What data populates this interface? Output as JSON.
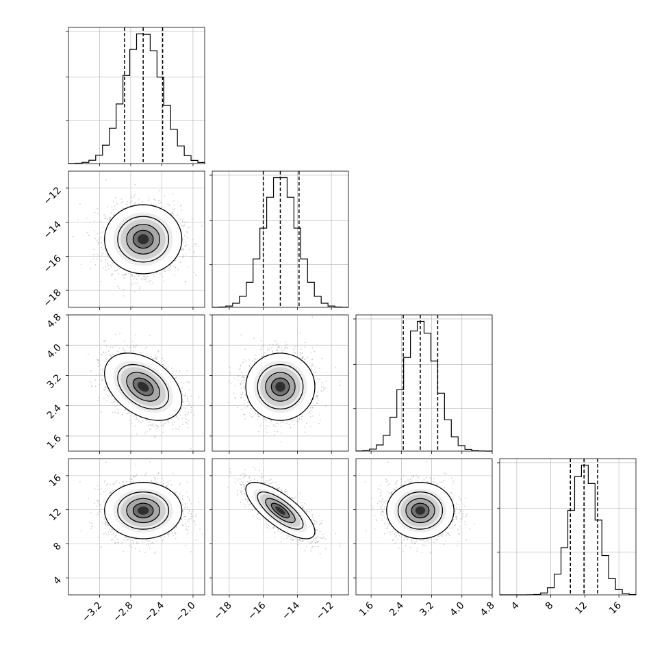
{
  "chart_data": {
    "type": "corner",
    "params": [
      {
        "name": "p0",
        "label": "",
        "range": [
          -3.6,
          -1.85
        ],
        "mean": -2.64,
        "sd": 0.24,
        "quantiles": [
          -2.88,
          -2.64,
          -2.39
        ],
        "tick_values": [
          -3.2,
          -2.8,
          -2.4,
          -2.0
        ],
        "tick_labels": [
          "−3.2",
          "−2.8",
          "−2.4",
          "−2.0"
        ]
      },
      {
        "name": "p1",
        "label": "",
        "range": [
          -19.0,
          -11.0
        ],
        "mean": -15.0,
        "sd": 0.98,
        "quantiles": [
          -16.0,
          -15.0,
          -13.9
        ],
        "tick_values": [
          -18,
          -16,
          -14,
          -12
        ],
        "tick_labels": [
          "−18",
          "−16",
          "−14",
          "−12"
        ]
      },
      {
        "name": "p2",
        "label": "",
        "range": [
          1.2,
          4.8
        ],
        "mean": 2.9,
        "sd": 0.43,
        "quantiles": [
          2.45,
          2.9,
          3.36
        ],
        "tick_values": [
          1.6,
          2.4,
          3.2,
          4.0,
          4.8
        ],
        "tick_labels": [
          "1.6",
          "2.4",
          "3.2",
          "4.0",
          "4.8"
        ]
      },
      {
        "name": "p3",
        "label": "",
        "range": [
          2.0,
          18.0
        ],
        "mean": 11.9,
        "sd": 1.6,
        "quantiles": [
          10.3,
          11.9,
          13.5
        ],
        "tick_values": [
          4,
          8,
          12,
          16
        ],
        "tick_labels": [
          "4",
          "8",
          "12",
          "16"
        ]
      }
    ],
    "correlations": [
      {
        "pair": [
          1,
          0
        ],
        "rho": 0.0
      },
      {
        "pair": [
          2,
          0
        ],
        "rho": -0.4
      },
      {
        "pair": [
          2,
          1
        ],
        "rho": 0.0
      },
      {
        "pair": [
          3,
          0
        ],
        "rho": 0.0
      },
      {
        "pair": [
          3,
          1
        ],
        "rho": -0.75
      },
      {
        "pair": [
          3,
          2
        ],
        "rho": 0.0
      }
    ],
    "histogram": {
      "bins": 20,
      "style": "step"
    },
    "contour_levels_sigma": [
      0.5,
      1.0,
      1.5,
      2.0
    ],
    "grid": true,
    "legend": "none"
  },
  "colors": {
    "line": "#000000",
    "grid": "#b0b0b0",
    "scatter": "#9a9a9a",
    "density_dark": "#000000"
  }
}
